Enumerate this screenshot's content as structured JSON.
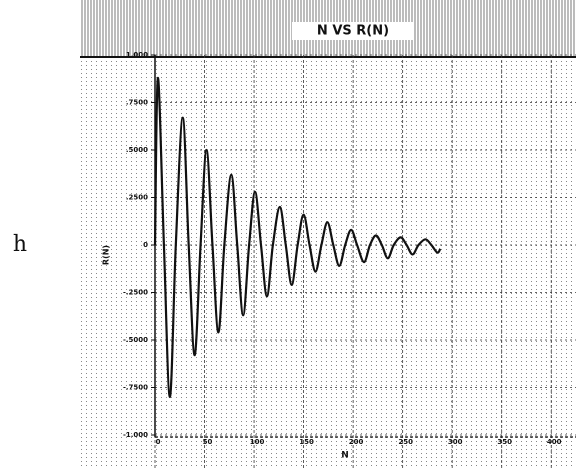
{
  "panel_label": "h",
  "chart_data": {
    "type": "line",
    "title": "N VS R(N)",
    "xlabel": "N",
    "ylabel": "R(N)",
    "x": [
      0,
      3,
      9,
      15,
      21,
      28,
      34,
      40,
      46,
      52,
      58,
      64,
      70,
      77,
      83,
      89,
      95,
      101,
      107,
      113,
      119,
      126,
      132,
      138,
      144,
      150,
      156,
      162,
      168,
      174,
      180,
      186,
      192,
      198,
      204,
      211,
      217,
      223,
      229,
      235,
      241,
      248,
      254,
      260,
      266,
      273,
      279,
      285,
      288
    ],
    "series": [
      {
        "name": "R(N)",
        "color": "#111111",
        "values": [
          0,
          0.88,
          0,
          -0.8,
          0,
          0.67,
          0,
          -0.58,
          0,
          0.5,
          0,
          -0.46,
          0,
          0.37,
          0,
          -0.37,
          0,
          0.28,
          0,
          -0.27,
          0,
          0.2,
          0,
          -0.21,
          0,
          0.16,
          0,
          -0.14,
          0,
          0.12,
          0,
          -0.11,
          0,
          0.08,
          0,
          -0.09,
          0,
          0.05,
          0,
          -0.07,
          0,
          0.04,
          0,
          -0.05,
          0,
          0.03,
          0,
          -0.04,
          -0.02
        ]
      }
    ],
    "xlim": [
      0,
      425
    ],
    "xticks": [
      0,
      50,
      100,
      150,
      200,
      250,
      300,
      350,
      400
    ],
    "ylim": [
      -1,
      1
    ],
    "yticks": [
      {
        "value": -1,
        "label": "-1.000"
      },
      {
        "value": -0.75,
        "label": "-.7500"
      },
      {
        "value": -0.5,
        "label": "-.5000"
      },
      {
        "value": -0.25,
        "label": "-.2500"
      },
      0,
      {
        "value": 0.25,
        "label": ".2500"
      },
      {
        "value": 0.5,
        "label": ".5000"
      },
      {
        "value": 0.75,
        "label": ".7500"
      },
      {
        "value": 1,
        "label": "1.000"
      }
    ],
    "grid": true
  }
}
